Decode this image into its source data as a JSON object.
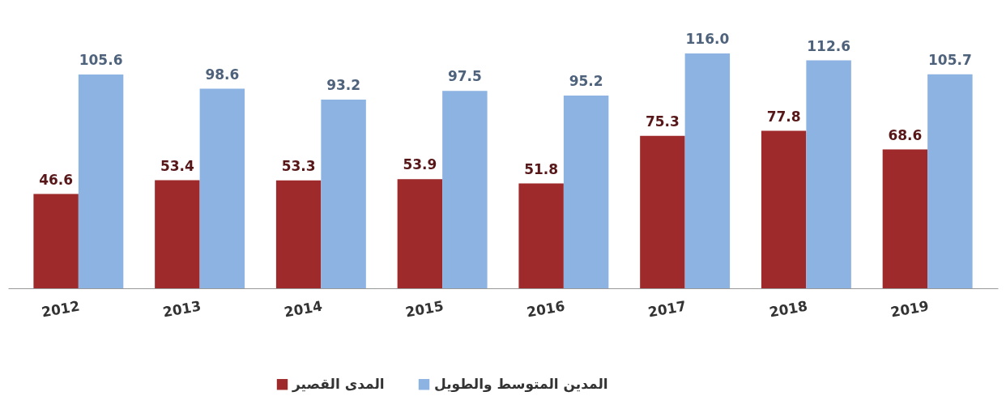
{
  "chart_data": {
    "type": "bar",
    "categories": [
      "2012",
      "2013",
      "2014",
      "2015",
      "2016",
      "2017",
      "2018",
      "2019"
    ],
    "series": [
      {
        "name": "المدى القصير",
        "color": "#9e2a2b",
        "values": [
          46.6,
          53.4,
          53.3,
          53.9,
          51.8,
          75.3,
          77.8,
          68.6
        ],
        "value_labels": [
          "46.6",
          "53.4",
          "53.3",
          "53.9",
          "51.8",
          "75.3",
          "77.8",
          "68.6"
        ]
      },
      {
        "name": "المدين المتوسط والطويل",
        "color": "#8db3e2",
        "values": [
          105.6,
          98.6,
          93.2,
          97.5,
          95.2,
          116.0,
          112.6,
          105.7
        ],
        "value_labels": [
          "105.6",
          "98.6",
          "93.2",
          "97.5",
          "95.2",
          "116.0",
          "112.6",
          "105.7"
        ]
      }
    ],
    "data_labels": true,
    "legend": "bottom",
    "grid": false
  }
}
